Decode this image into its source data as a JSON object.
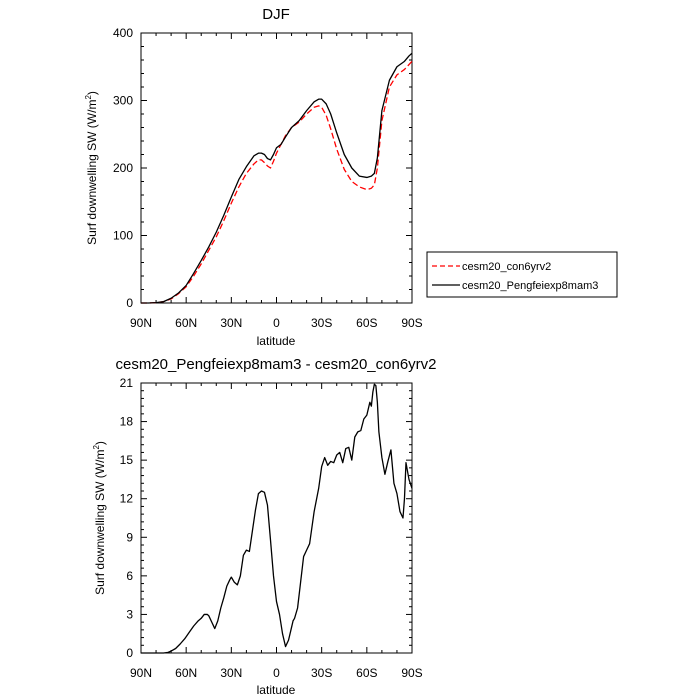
{
  "chart_data": [
    {
      "type": "line",
      "title": "DJF",
      "xlabel": "latitude",
      "ylabel": "Surf downwelling SW (W/m²)",
      "ylabel_main": "Surf downwelling SW (W/m",
      "ylabel_sup": "2",
      "ylabel_end": ")",
      "xlim": [
        90,
        -90
      ],
      "ylim": [
        0,
        400
      ],
      "x_ticks": [
        90,
        60,
        30,
        0,
        -30,
        -60,
        -90
      ],
      "x_tick_labels": [
        "90N",
        "60N",
        "30N",
        "0",
        "30S",
        "60S",
        "90S"
      ],
      "y_ticks": [
        0,
        100,
        200,
        300,
        400
      ],
      "y_tick_labels": [
        "0",
        "100",
        "200",
        "300",
        "400"
      ],
      "legend_position": "right",
      "series": [
        {
          "name": "cesm20_con6yrv2",
          "color": "#ff0000",
          "dash": "dashed",
          "x": [
            90,
            85,
            80,
            75,
            70,
            65,
            60,
            55,
            50,
            45,
            40,
            35,
            30,
            25,
            20,
            15,
            12,
            10,
            8,
            6,
            4,
            2,
            0,
            -3,
            -6,
            -10,
            -15,
            -20,
            -25,
            -28,
            -30,
            -33,
            -36,
            -40,
            -45,
            -50,
            -55,
            -60,
            -63,
            -65,
            -67,
            -70,
            -75,
            -80,
            -85,
            -90
          ],
          "y": [
            0,
            0,
            0.5,
            2,
            6,
            14,
            24,
            40,
            58,
            78,
            98,
            122,
            148,
            172,
            192,
            206,
            212,
            212,
            208,
            203,
            200,
            210,
            222,
            235,
            248,
            260,
            268,
            280,
            290,
            292,
            290,
            278,
            258,
            228,
            198,
            180,
            172,
            168,
            170,
            175,
            200,
            270,
            320,
            338,
            346,
            358
          ]
        },
        {
          "name": "cesm20_Pengfeiexp8mam3",
          "color": "#000000",
          "dash": "solid",
          "x": [
            90,
            85,
            80,
            75,
            70,
            65,
            60,
            55,
            50,
            45,
            40,
            35,
            30,
            25,
            20,
            15,
            12,
            10,
            8,
            6,
            4,
            2,
            0,
            -3,
            -6,
            -10,
            -15,
            -20,
            -25,
            -28,
            -30,
            -33,
            -36,
            -40,
            -45,
            -50,
            -55,
            -60,
            -63,
            -65,
            -67,
            -70,
            -75,
            -80,
            -85,
            -88,
            -90
          ],
          "y": [
            0,
            0,
            0.5,
            2,
            7,
            15,
            26,
            44,
            63,
            83,
            105,
            130,
            157,
            183,
            202,
            218,
            222,
            222,
            220,
            214,
            212,
            220,
            230,
            235,
            246,
            260,
            270,
            285,
            298,
            302,
            302,
            295,
            280,
            252,
            220,
            200,
            188,
            186,
            188,
            192,
            215,
            285,
            330,
            350,
            358,
            366,
            370
          ]
        }
      ]
    },
    {
      "type": "line",
      "title": "cesm20_Pengfeiexp8mam3 - cesm20_con6yrv2",
      "xlabel": "latitude",
      "ylabel": "Surf downwelling SW (W/m²)",
      "ylabel_main": "Surf downwelling SW (W/m",
      "ylabel_sup": "2",
      "ylabel_end": ")",
      "xlim": [
        90,
        -90
      ],
      "ylim": [
        0,
        21
      ],
      "x_ticks": [
        90,
        60,
        30,
        0,
        -30,
        -60,
        -90
      ],
      "x_tick_labels": [
        "90N",
        "60N",
        "30N",
        "0",
        "30S",
        "60S",
        "90S"
      ],
      "y_ticks": [
        0,
        3,
        6,
        9,
        12,
        15,
        18,
        21
      ],
      "y_tick_labels": [
        "0",
        "3",
        "6",
        "9",
        "12",
        "15",
        "18",
        "21"
      ],
      "series": [
        {
          "color": "#000000",
          "dash": "solid",
          "x": [
            90,
            85,
            80,
            75,
            72,
            70,
            67,
            64,
            61,
            58,
            55,
            52,
            50,
            48,
            46,
            45,
            43,
            41,
            39,
            37,
            35,
            33,
            31,
            30,
            28,
            26,
            24,
            22,
            20,
            18,
            16,
            14,
            12,
            10,
            8,
            6,
            4,
            2,
            0,
            -2,
            -4,
            -6,
            -8,
            -10,
            -11,
            -12,
            -14,
            -16,
            -18,
            -20,
            -22,
            -25,
            -28,
            -30,
            -32,
            -34,
            -36,
            -38,
            -40,
            -42,
            -44,
            -46,
            -48,
            -50,
            -52,
            -54,
            -56,
            -58,
            -60,
            -62,
            -63,
            -64,
            -65,
            -66,
            -67,
            -68,
            -70,
            -72,
            -74,
            -76,
            -78,
            -80,
            -82,
            -84,
            -85,
            -86,
            -88,
            -90
          ],
          "y": [
            0,
            0,
            0,
            0,
            0.05,
            0.15,
            0.35,
            0.7,
            1.1,
            1.6,
            2.1,
            2.5,
            2.7,
            3.0,
            3.0,
            2.9,
            2.4,
            1.9,
            2.5,
            3.5,
            4.3,
            5.2,
            5.7,
            5.9,
            5.5,
            5.3,
            6.0,
            7.6,
            8.0,
            7.9,
            9.5,
            11.1,
            12.4,
            12.6,
            12.5,
            11.5,
            8.8,
            6.0,
            4.0,
            3.0,
            1.5,
            0.5,
            1.0,
            2.0,
            2.5,
            2.7,
            3.5,
            5.5,
            7.5,
            8.0,
            8.5,
            11.0,
            12.8,
            14.5,
            15.2,
            14.6,
            14.9,
            14.8,
            15.4,
            15.6,
            14.8,
            15.9,
            16.0,
            15.0,
            16.8,
            17.2,
            17.3,
            18.2,
            18.5,
            19.5,
            19.2,
            20.3,
            20.9,
            20.8,
            19.5,
            17.2,
            15.2,
            13.9,
            14.9,
            15.8,
            13.2,
            12.4,
            11.0,
            10.5,
            12.0,
            14.8,
            13.5,
            12.8
          ]
        }
      ]
    }
  ]
}
